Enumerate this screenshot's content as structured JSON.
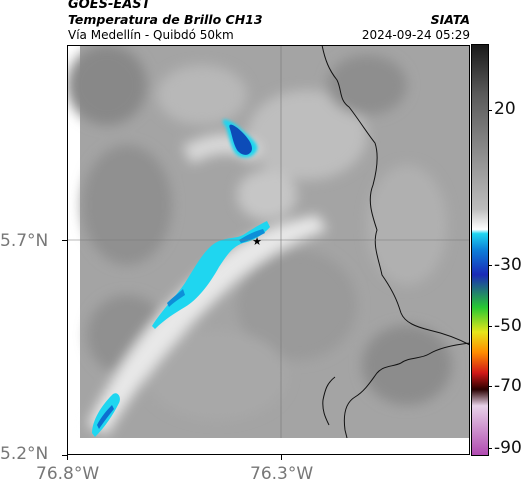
{
  "header": {
    "satellite": "GOES-EAST",
    "product": "Temperatura de Brillo CH13",
    "subtitle": "Vía Medellín - Quibdó 50km",
    "org": "SIATA",
    "datetime": "2024-09-24 05:29"
  },
  "axes": {
    "y_labels": [
      "5.7°N",
      "5.2°N"
    ],
    "x_labels": [
      "76.8°W",
      "76.3°W"
    ]
  },
  "colorbar": {
    "labels": [
      "20",
      "-30",
      "-50",
      "-70",
      "-90"
    ],
    "stops": [
      "#1a1a1a",
      "#5a5a5a",
      "#bdbdbd",
      "#ffffff",
      "#1fd6f0",
      "#0d7fd8",
      "#1a2ab8",
      "#27c832",
      "#e6e61a",
      "#ff8c00",
      "#d01818",
      "#2a0000",
      "#e8d2e8",
      "#b04ab0"
    ]
  },
  "marker": {
    "name": "star-marker"
  }
}
